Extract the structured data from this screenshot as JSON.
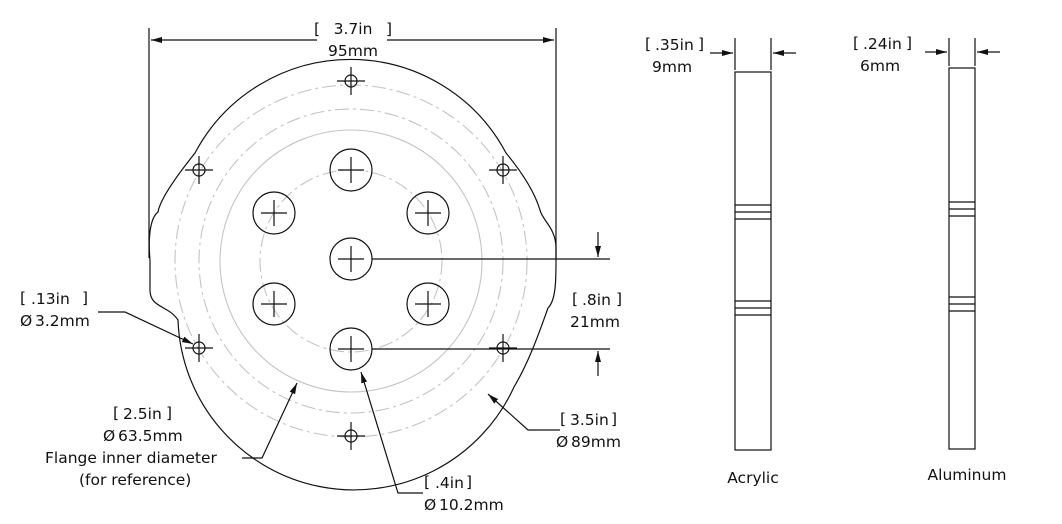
{
  "overall_width": {
    "in": "3.7in",
    "mm": "95mm"
  },
  "hole_small": {
    "in": ".13in",
    "mm": "3.2mm"
  },
  "hole_spacing": {
    "in": ".8in",
    "mm": "21mm"
  },
  "flange_ref": {
    "in": "2.5in",
    "mm": "63.5mm",
    "note_line1": "Flange inner diameter",
    "note_line2": "(for reference)"
  },
  "outer_diameter": {
    "in": "3.5in",
    "mm": "89mm"
  },
  "hole_large": {
    "in": ".4in",
    "mm": "10.2mm"
  },
  "acrylic": {
    "thickness_in": ".35in",
    "thickness_mm": "9mm",
    "label": "Acrylic"
  },
  "aluminum": {
    "thickness_in": ".24in",
    "thickness_mm": "6mm",
    "label": "Aluminum"
  },
  "diameter_symbol": "Ø"
}
